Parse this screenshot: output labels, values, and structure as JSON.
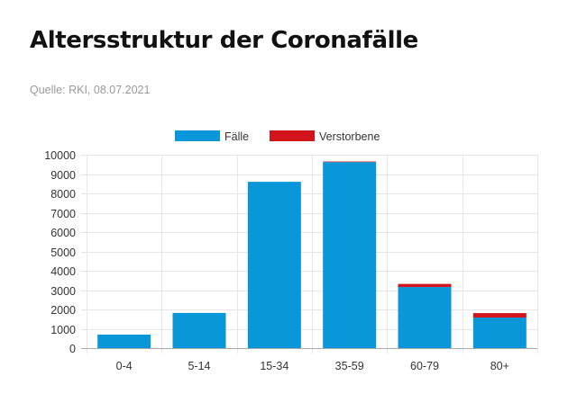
{
  "page": {
    "title": "Altersstruktur der Coronafälle",
    "source": "Quelle: RKI, 08.07.2021"
  },
  "colors": {
    "faelle": "#0a97d9",
    "verstorbene": "#d2151c",
    "grid": "#e6e6e6",
    "axis": "#aaaaaa"
  },
  "chart_data": {
    "type": "bar",
    "stacked": true,
    "categories": [
      "0-4",
      "5-14",
      "15-34",
      "35-59",
      "60-79",
      "80+"
    ],
    "series": [
      {
        "name": "Fälle",
        "values": [
          700,
          1820,
          8600,
          9620,
          3160,
          1580
        ]
      },
      {
        "name": "Verstorbene",
        "values": [
          0,
          0,
          0,
          30,
          160,
          230
        ]
      }
    ],
    "ylim": [
      0,
      10000
    ],
    "yticks": [
      0,
      1000,
      2000,
      3000,
      4000,
      5000,
      6000,
      7000,
      8000,
      9000,
      10000
    ],
    "grid": true,
    "legend_position": "top-center"
  }
}
